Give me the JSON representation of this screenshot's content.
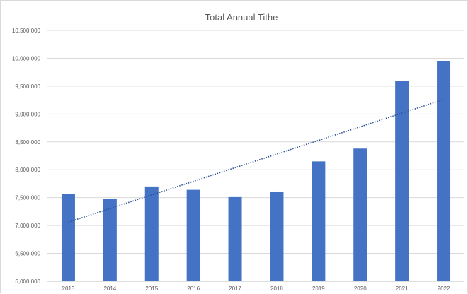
{
  "chart_data": {
    "type": "bar",
    "title": "Total Annual Tithe",
    "xlabel": "",
    "ylabel": "",
    "categories": [
      "2013",
      "2014",
      "2015",
      "2016",
      "2017",
      "2018",
      "2019",
      "2020",
      "2021",
      "2022"
    ],
    "values": [
      7570000,
      7480000,
      7700000,
      7640000,
      7510000,
      7610000,
      8150000,
      8380000,
      9600000,
      9950000
    ],
    "ylim": [
      6000000,
      10500000
    ],
    "yticks": [
      6000000,
      6500000,
      7000000,
      7500000,
      8000000,
      8500000,
      9000000,
      9500000,
      10000000,
      10500000
    ],
    "ytick_labels": [
      "6,000,000",
      "6,500,000",
      "7,000,000",
      "7,500,000",
      "8,000,000",
      "8,500,000",
      "9,000,000",
      "9,500,000",
      "10,000,000",
      "10,500,000"
    ],
    "trendline": {
      "type": "linear",
      "style": "dotted",
      "start": 7060000,
      "end": 9260000
    },
    "grid": true,
    "legend": "none",
    "colors": {
      "bar": "#4472c4",
      "trendline": "#2f5597"
    }
  }
}
